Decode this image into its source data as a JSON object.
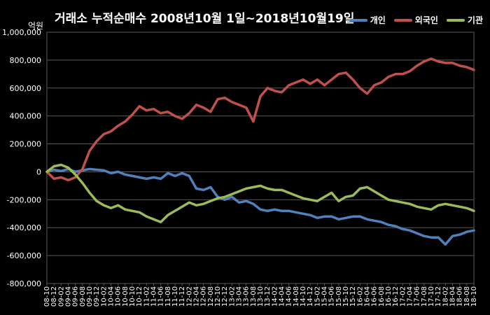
{
  "colors": {
    "background": "#000000",
    "grid": "#5a5a5a",
    "individual": "#4f81bd",
    "foreign": "#c0504d",
    "institution": "#9bbb59"
  },
  "chart_data": {
    "type": "line",
    "title": "거래소 누적순매수 2008년10월 1일~2018년10월19일",
    "ylabel": "억원",
    "xlabel": "",
    "ylim": [
      -800000,
      1000000
    ],
    "yticks": [
      1000000,
      800000,
      600000,
      400000,
      200000,
      0,
      -200000,
      -400000,
      -600000,
      -800000
    ],
    "ytick_labels": [
      "1,000,000",
      "800,000",
      "600,000",
      "400,000",
      "200,000",
      "0",
      "-200,000",
      "-400,000",
      "-600,000",
      "-800,000"
    ],
    "grid": true,
    "legend_position": "top-right",
    "x": [
      "08-10",
      "08-12",
      "09-02",
      "09-04",
      "09-06",
      "09-08",
      "09-10",
      "09-12",
      "10-02",
      "10-04",
      "10-06",
      "10-08",
      "10-10",
      "10-12",
      "11-02",
      "11-04",
      "11-06",
      "11-08",
      "11-10",
      "11-12",
      "12-02",
      "12-04",
      "12-06",
      "12-08",
      "12-10",
      "12-12",
      "13-02",
      "13-04",
      "13-06",
      "13-08",
      "13-10",
      "13-12",
      "14-02",
      "14-04",
      "14-06",
      "14-08",
      "14-10",
      "14-12",
      "15-02",
      "15-04",
      "15-06",
      "15-08",
      "15-10",
      "15-12",
      "16-02",
      "16-04",
      "16-06",
      "16-08",
      "16-10",
      "16-12",
      "17-02",
      "17-04",
      "17-06",
      "17-08",
      "17-10",
      "17-12",
      "18-02",
      "18-04",
      "18-06",
      "18-08",
      "18-10"
    ],
    "series": [
      {
        "name": "개인",
        "values": [
          0,
          15000,
          5000,
          20000,
          0,
          10000,
          20000,
          15000,
          10000,
          -10000,
          0,
          -20000,
          -30000,
          -40000,
          -50000,
          -40000,
          -50000,
          -10000,
          -30000,
          -10000,
          -30000,
          -120000,
          -130000,
          -110000,
          -180000,
          -200000,
          -180000,
          -220000,
          -210000,
          -230000,
          -270000,
          -280000,
          -270000,
          -280000,
          -280000,
          -290000,
          -300000,
          -310000,
          -330000,
          -320000,
          -320000,
          -340000,
          -330000,
          -320000,
          -320000,
          -340000,
          -350000,
          -360000,
          -380000,
          -390000,
          -410000,
          -420000,
          -440000,
          -460000,
          -470000,
          -470000,
          -520000,
          -460000,
          -450000,
          -430000,
          -420000
        ]
      },
      {
        "name": "외국인",
        "values": [
          0,
          -50000,
          -40000,
          -60000,
          -40000,
          20000,
          150000,
          220000,
          270000,
          290000,
          330000,
          360000,
          410000,
          470000,
          440000,
          450000,
          420000,
          430000,
          400000,
          380000,
          420000,
          480000,
          460000,
          430000,
          520000,
          530000,
          500000,
          480000,
          460000,
          360000,
          540000,
          600000,
          580000,
          570000,
          620000,
          640000,
          660000,
          630000,
          660000,
          620000,
          660000,
          700000,
          710000,
          660000,
          600000,
          560000,
          620000,
          640000,
          680000,
          700000,
          700000,
          720000,
          760000,
          790000,
          810000,
          790000,
          780000,
          780000,
          760000,
          750000,
          730000
        ]
      },
      {
        "name": "기관",
        "values": [
          0,
          40000,
          50000,
          30000,
          -20000,
          -80000,
          -150000,
          -210000,
          -240000,
          -260000,
          -240000,
          -270000,
          -280000,
          -290000,
          -320000,
          -340000,
          -360000,
          -310000,
          -280000,
          -250000,
          -220000,
          -240000,
          -230000,
          -210000,
          -190000,
          -180000,
          -160000,
          -140000,
          -120000,
          -110000,
          -100000,
          -120000,
          -130000,
          -130000,
          -150000,
          -170000,
          -190000,
          -200000,
          -210000,
          -180000,
          -150000,
          -210000,
          -180000,
          -170000,
          -120000,
          -110000,
          -140000,
          -170000,
          -200000,
          -210000,
          -220000,
          -230000,
          -250000,
          -260000,
          -270000,
          -240000,
          -230000,
          -240000,
          -250000,
          -260000,
          -280000
        ]
      }
    ]
  }
}
